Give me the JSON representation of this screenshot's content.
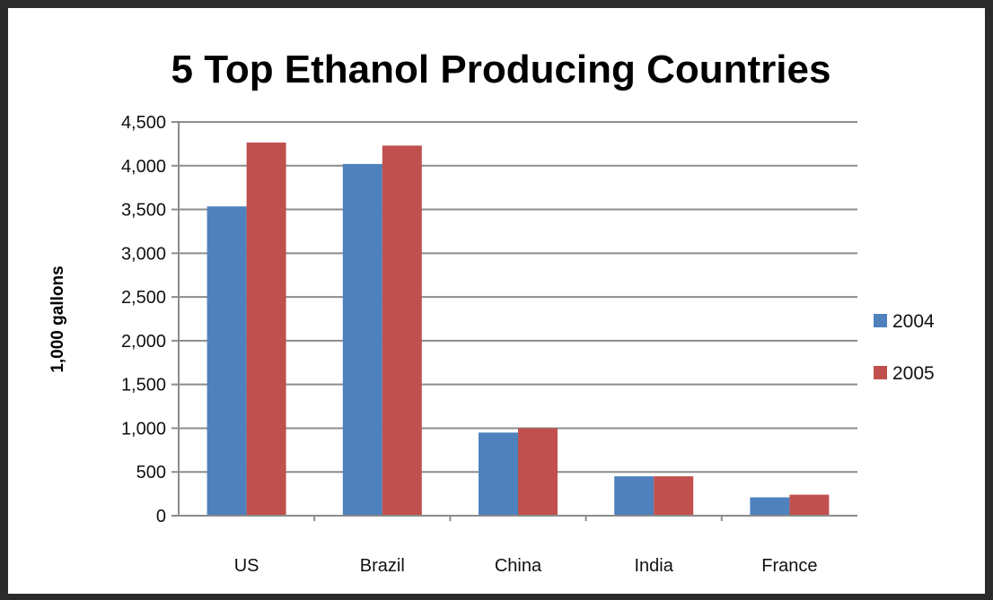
{
  "chart_data": {
    "type": "bar",
    "title": "5 Top Ethanol Producing Countries",
    "xlabel": "",
    "ylabel": "1,000 gallons",
    "categories": [
      "US",
      "Brazil",
      "China",
      "India",
      "France"
    ],
    "series": [
      {
        "name": "2004",
        "color": "#4f81bd",
        "values": [
          3535,
          4020,
          950,
          450,
          210
        ]
      },
      {
        "name": "2005",
        "color": "#c0504d",
        "values": [
          4265,
          4230,
          1000,
          450,
          240
        ]
      }
    ],
    "ylim": [
      0,
      4500
    ],
    "yticks": [
      "0",
      "500",
      "1,000",
      "1,500",
      "2,000",
      "2,500",
      "3,000",
      "3,500",
      "4,000",
      "4,500"
    ],
    "grid": true,
    "legend_position": "right"
  }
}
